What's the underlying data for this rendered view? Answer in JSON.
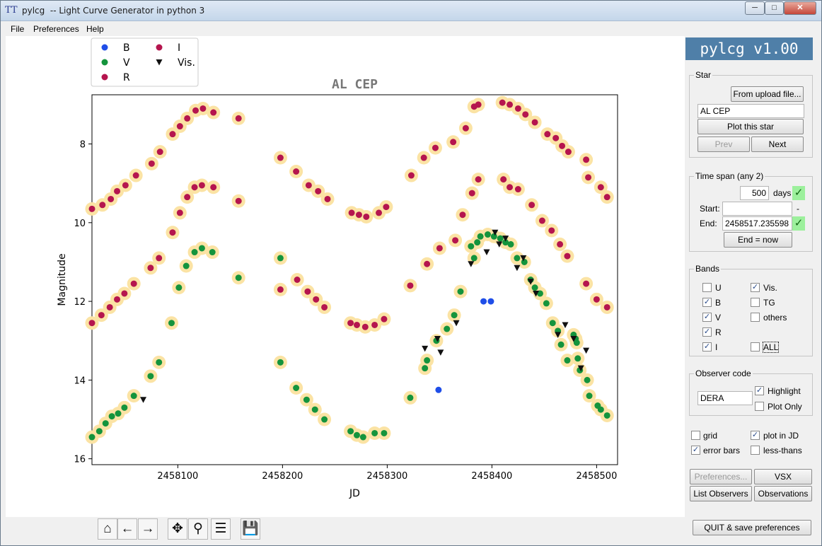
{
  "window": {
    "app_icon": "TT",
    "title": "pylcg  -- Light Curve Generator in python 3",
    "min": "─",
    "max": "□",
    "close": "✕"
  },
  "menu": [
    "File",
    "Preferences",
    "Help"
  ],
  "side_header": "pylcg v1.00",
  "star": {
    "legend": "Star",
    "upload_btn": "From upload file...",
    "name": "AL CEP",
    "plot_btn": "Plot this star",
    "prev_btn": "Prev",
    "next_btn": "Next"
  },
  "timespan": {
    "legend": "Time span (any 2)",
    "days_value": "500",
    "days_label": "days",
    "start_label": "Start:",
    "start_value": "",
    "start_dash": "-",
    "end_label": "End:",
    "end_value": "2458517.235598",
    "end_now_btn": "End = now",
    "check": "✓"
  },
  "bands": {
    "legend": "Bands",
    "items": [
      {
        "label": "U",
        "checked": false
      },
      {
        "label": "Vis.",
        "checked": true
      },
      {
        "label": "B",
        "checked": true
      },
      {
        "label": "TG",
        "checked": false
      },
      {
        "label": "V",
        "checked": true
      },
      {
        "label": "others",
        "checked": false
      },
      {
        "label": "R",
        "checked": true
      },
      {
        "label": "I",
        "checked": true
      },
      {
        "label": "ALL",
        "checked": false
      }
    ]
  },
  "observer": {
    "legend": "Observer code",
    "code": "DERA",
    "highlight": "Highlight",
    "highlight_checked": true,
    "plot_only": "Plot Only",
    "plot_only_checked": false
  },
  "options": {
    "grid": "grid",
    "grid_checked": false,
    "plot_jd": "plot in JD",
    "plot_jd_checked": true,
    "error_bars": "error bars",
    "error_bars_checked": true,
    "less_thans": "less-thans",
    "less_thans_checked": false
  },
  "buttons": {
    "preferences": "Preferences...",
    "vsx": "VSX",
    "list_observers": "List Observers",
    "observations": "Observations",
    "quit": "QUIT & save preferences"
  },
  "toolbar": [
    {
      "name": "home-icon",
      "glyph": "⌂"
    },
    {
      "name": "back-arrow-icon",
      "glyph": "←"
    },
    {
      "name": "forward-arrow-icon",
      "glyph": "→"
    },
    {
      "name": "pan-icon",
      "glyph": "✥"
    },
    {
      "name": "zoom-icon",
      "glyph": "⚲"
    },
    {
      "name": "subplots-config-icon",
      "glyph": "☰"
    },
    {
      "name": "save-icon",
      "glyph": "💾"
    }
  ],
  "chart_data": {
    "type": "scatter",
    "title": "AL CEP",
    "xlabel": "JD",
    "ylabel": "Magnitude",
    "xlim": [
      2458018,
      2458520
    ],
    "ylim": [
      16.15,
      6.75
    ],
    "y_inverted": true,
    "xticks": [
      2458100,
      2458200,
      2458300,
      2458400,
      2458500
    ],
    "xtick_labels": [
      "2458100",
      "2458200",
      "2458300",
      "2458400",
      "2458500"
    ],
    "yticks": [
      8,
      10,
      12,
      14,
      16
    ],
    "ytick_labels": [
      "8",
      "10",
      "12",
      "14",
      "16"
    ],
    "grid": false,
    "legend_position": "top-left (outside, above axes)",
    "highlight_color": "#fbe3a4",
    "series": [
      {
        "name": "B",
        "color": "#1f4ee8",
        "marker": "circle",
        "points": [
          [
            2458349,
            14.25
          ],
          [
            2458392,
            12.0
          ],
          [
            2458399,
            12.0
          ]
        ]
      },
      {
        "name": "V",
        "color": "#14943c",
        "marker": "circle",
        "points": [
          [
            2458018,
            15.45
          ],
          [
            2458025,
            15.3
          ],
          [
            2458031,
            15.1
          ],
          [
            2458037,
            14.92
          ],
          [
            2458043,
            14.85
          ],
          [
            2458049,
            14.7
          ],
          [
            2458058,
            14.4
          ],
          [
            2458074,
            13.9
          ],
          [
            2458082,
            13.55
          ],
          [
            2458094,
            12.55
          ],
          [
            2458101,
            11.65
          ],
          [
            2458108,
            11.1
          ],
          [
            2458116,
            10.75
          ],
          [
            2458123,
            10.65
          ],
          [
            2458133,
            10.75
          ],
          [
            2458158,
            11.4
          ],
          [
            2458198,
            10.9
          ],
          [
            2458198,
            13.55
          ],
          [
            2458213,
            14.2
          ],
          [
            2458223,
            14.5
          ],
          [
            2458231,
            14.75
          ],
          [
            2458240,
            15.0
          ],
          [
            2458265,
            15.3
          ],
          [
            2458271,
            15.4
          ],
          [
            2458277,
            15.45
          ],
          [
            2458288,
            15.35
          ],
          [
            2458297,
            15.35
          ],
          [
            2458322,
            14.45
          ],
          [
            2458336,
            13.7
          ],
          [
            2458338,
            13.5
          ],
          [
            2458347,
            13.0
          ],
          [
            2458357,
            12.7
          ],
          [
            2458364,
            12.35
          ],
          [
            2458370,
            11.75
          ],
          [
            2458380,
            10.6
          ],
          [
            2458383,
            10.9
          ],
          [
            2458386,
            10.5
          ],
          [
            2458389,
            10.35
          ],
          [
            2458396,
            10.3
          ],
          [
            2458402,
            10.35
          ],
          [
            2458408,
            10.4
          ],
          [
            2458413,
            10.5
          ],
          [
            2458418,
            10.55
          ],
          [
            2458424,
            10.9
          ],
          [
            2458431,
            11.0
          ],
          [
            2458437,
            11.45
          ],
          [
            2458441,
            11.65
          ],
          [
            2458446,
            11.8
          ],
          [
            2458452,
            12.05
          ],
          [
            2458458,
            12.55
          ],
          [
            2458463,
            12.75
          ],
          [
            2458466,
            13.1
          ],
          [
            2458472,
            13.5
          ],
          [
            2458478,
            12.85
          ],
          [
            2458480,
            12.95
          ],
          [
            2458481,
            13.05
          ],
          [
            2458482,
            13.45
          ],
          [
            2458484,
            13.75
          ],
          [
            2458491,
            14.0
          ],
          [
            2458493,
            14.4
          ],
          [
            2458501,
            14.65
          ],
          [
            2458504,
            14.75
          ],
          [
            2458510,
            14.9
          ]
        ]
      },
      {
        "name": "R",
        "color": "#b5154e",
        "marker": "circle",
        "points": [
          [
            2458018,
            12.55
          ],
          [
            2458027,
            12.35
          ],
          [
            2458035,
            12.15
          ],
          [
            2458042,
            11.95
          ],
          [
            2458049,
            11.8
          ],
          [
            2458058,
            11.55
          ],
          [
            2458074,
            11.15
          ],
          [
            2458082,
            10.9
          ],
          [
            2458095,
            10.25
          ],
          [
            2458102,
            9.75
          ],
          [
            2458109,
            9.35
          ],
          [
            2458116,
            9.1
          ],
          [
            2458123,
            9.05
          ],
          [
            2458134,
            9.1
          ],
          [
            2458158,
            9.45
          ],
          [
            2458198,
            11.7
          ],
          [
            2458214,
            11.45
          ],
          [
            2458224,
            11.75
          ],
          [
            2458232,
            11.95
          ],
          [
            2458240,
            12.15
          ],
          [
            2458265,
            12.55
          ],
          [
            2458271,
            12.6
          ],
          [
            2458279,
            12.65
          ],
          [
            2458288,
            12.6
          ],
          [
            2458297,
            12.45
          ],
          [
            2458322,
            11.6
          ],
          [
            2458338,
            11.05
          ],
          [
            2458350,
            10.65
          ],
          [
            2458365,
            10.45
          ],
          [
            2458372,
            9.8
          ],
          [
            2458381,
            9.25
          ],
          [
            2458387,
            8.9
          ],
          [
            2458411,
            8.9
          ],
          [
            2458417,
            9.1
          ],
          [
            2458425,
            9.15
          ],
          [
            2458438,
            9.55
          ],
          [
            2458448,
            9.95
          ],
          [
            2458457,
            10.2
          ],
          [
            2458465,
            10.55
          ],
          [
            2458472,
            10.85
          ],
          [
            2458490,
            11.55
          ],
          [
            2458500,
            11.95
          ],
          [
            2458510,
            12.15
          ]
        ]
      },
      {
        "name": "I",
        "color": "#b5154e",
        "marker": "circle",
        "points": [
          [
            2458018,
            9.65
          ],
          [
            2458028,
            9.55
          ],
          [
            2458036,
            9.4
          ],
          [
            2458042,
            9.2
          ],
          [
            2458050,
            9.05
          ],
          [
            2458060,
            8.8
          ],
          [
            2458075,
            8.5
          ],
          [
            2458083,
            8.2
          ],
          [
            2458095,
            7.75
          ],
          [
            2458102,
            7.55
          ],
          [
            2458109,
            7.35
          ],
          [
            2458117,
            7.15
          ],
          [
            2458124,
            7.1
          ],
          [
            2458134,
            7.2
          ],
          [
            2458158,
            7.35
          ],
          [
            2458198,
            8.35
          ],
          [
            2458213,
            8.7
          ],
          [
            2458225,
            9.05
          ],
          [
            2458234,
            9.2
          ],
          [
            2458243,
            9.4
          ],
          [
            2458266,
            9.75
          ],
          [
            2458273,
            9.8
          ],
          [
            2458280,
            9.85
          ],
          [
            2458292,
            9.75
          ],
          [
            2458299,
            9.6
          ],
          [
            2458323,
            8.8
          ],
          [
            2458335,
            8.35
          ],
          [
            2458346,
            8.1
          ],
          [
            2458363,
            7.95
          ],
          [
            2458375,
            7.6
          ],
          [
            2458383,
            7.05
          ],
          [
            2458387,
            7.0
          ],
          [
            2458410,
            6.95
          ],
          [
            2458417,
            7.0
          ],
          [
            2458425,
            7.1
          ],
          [
            2458432,
            7.25
          ],
          [
            2458441,
            7.45
          ],
          [
            2458453,
            7.75
          ],
          [
            2458461,
            7.85
          ],
          [
            2458467,
            8.05
          ],
          [
            2458473,
            8.2
          ],
          [
            2458490,
            8.4
          ],
          [
            2458492,
            8.85
          ],
          [
            2458504,
            9.1
          ],
          [
            2458510,
            9.35
          ]
        ]
      },
      {
        "name": "Vis.",
        "color": "#111111",
        "marker": "triangle-down",
        "points": [
          [
            2458067,
            14.5
          ],
          [
            2458336,
            13.2
          ],
          [
            2458348,
            12.95
          ],
          [
            2458351,
            13.3
          ],
          [
            2458366,
            12.55
          ],
          [
            2458380,
            11.05
          ],
          [
            2458395,
            10.75
          ],
          [
            2458403,
            10.25
          ],
          [
            2458407,
            10.55
          ],
          [
            2458413,
            10.4
          ],
          [
            2458424,
            11.15
          ],
          [
            2458430,
            10.9
          ],
          [
            2458437,
            11.5
          ],
          [
            2458442,
            11.8
          ],
          [
            2458463,
            12.85
          ],
          [
            2458470,
            12.6
          ],
          [
            2458478,
            12.95
          ],
          [
            2458485,
            13.7
          ],
          [
            2458490,
            13.25
          ]
        ]
      }
    ]
  }
}
